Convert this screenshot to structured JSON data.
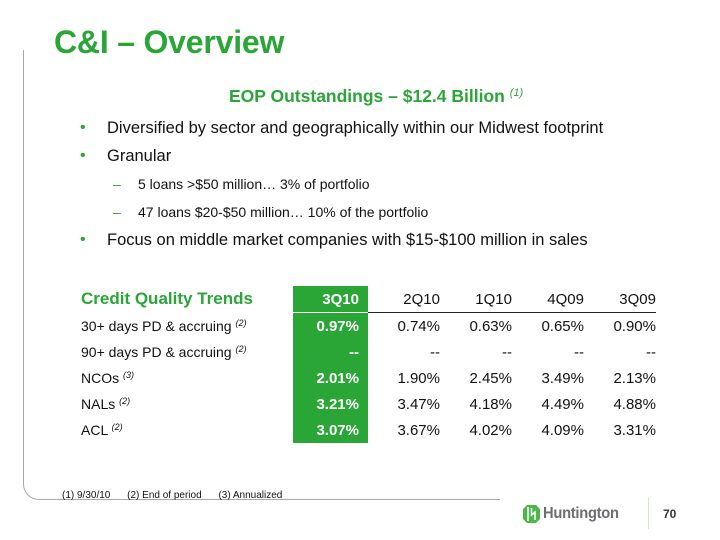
{
  "slide": {
    "title": "C&I – Overview",
    "subtitle": "EOP Outstandings – $12.4 Billion",
    "subtitle_note": "(1)",
    "bullets": [
      {
        "level": 1,
        "text": "Diversified by sector and geographically within our Midwest footprint"
      },
      {
        "level": 1,
        "text": "Granular"
      },
      {
        "level": 2,
        "text": "5 loans >$50 million… 3% of portfolio"
      },
      {
        "level": 2,
        "text": "47 loans $20-$50 million… 10% of the portfolio"
      },
      {
        "level": 1,
        "text": "Focus on middle market companies with $15-$100 million in sales"
      }
    ],
    "bullet_glyph": "•",
    "dash_glyph": "–"
  },
  "table": {
    "title": "Credit Quality Trends",
    "columns": [
      "3Q10",
      "2Q10",
      "1Q10",
      "4Q09",
      "3Q09"
    ],
    "rows": [
      {
        "label": "30+ days PD & accruing",
        "note": "(2)",
        "values": [
          "0.97%",
          "0.74%",
          "0.63%",
          "0.65%",
          "0.90%"
        ]
      },
      {
        "label": "90+ days PD & accruing",
        "note": "(2)",
        "values": [
          "--",
          "--",
          "--",
          "--",
          "--"
        ]
      },
      {
        "label": "NCOs",
        "note": "(3)",
        "values": [
          "2.01%",
          "1.90%",
          "2.45%",
          "3.49%",
          "2.13%"
        ]
      },
      {
        "label": "NALs",
        "note": "(2)",
        "values": [
          "3.21%",
          "3.47%",
          "4.18%",
          "4.49%",
          "4.88%"
        ]
      },
      {
        "label": "ACL",
        "note": "(2)",
        "values": [
          "3.07%",
          "3.67%",
          "4.02%",
          "4.09%",
          "3.31%"
        ]
      }
    ]
  },
  "footnotes": [
    "(1)  9/30/10",
    "(2)  End of period",
    "(3)   Annualized"
  ],
  "footer": {
    "logo_text": "Huntington",
    "logo_icon": "huntington-logo-icon",
    "page_number": "70"
  },
  "colors": {
    "brand_green": "#2aa637",
    "logo_gray": "#6d6e71",
    "frame_gray": "#a8a8a8"
  }
}
